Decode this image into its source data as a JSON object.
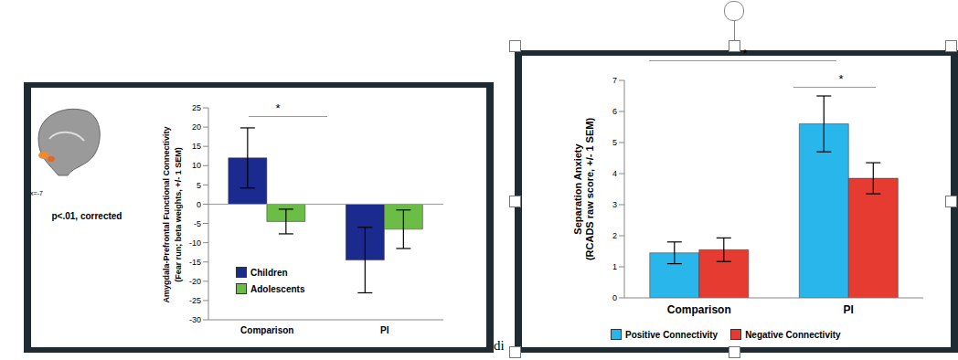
{
  "chart_data": [
    {
      "type": "bar",
      "categories": [
        "Comparison",
        "PI"
      ],
      "y_label": "Amygdala-Prefrontal Functional Connectivity\n(Fear run; beta weights, +/- 1 SEM)",
      "series": [
        {
          "name": "Children",
          "color": "#1b2a8f",
          "values": [
            12,
            -14.5
          ],
          "errors": [
            7.8,
            8.5
          ]
        },
        {
          "name": "Adolescents",
          "color": "#6cbd45",
          "values": [
            -4.5,
            -6.5
          ],
          "errors": [
            3.2,
            5
          ]
        }
      ],
      "ylim": [
        -30,
        25
      ],
      "yticks": [
        -30,
        -25,
        -20,
        -15,
        -10,
        -5,
        0,
        5,
        10,
        15,
        20,
        25
      ],
      "legend": "lower left",
      "annotations": [
        "*",
        "x=-7",
        "p<.01, corrected"
      ]
    },
    {
      "type": "bar",
      "categories": [
        "Comparison",
        "PI"
      ],
      "y_label": "Separation Anxiety\n(RCADS raw score, +/- 1 SEM)",
      "series": [
        {
          "name": "Positive Connectivity",
          "color": "#29b6ea",
          "values": [
            1.45,
            5.6
          ],
          "errors": [
            0.35,
            0.9
          ]
        },
        {
          "name": "Negative Connectivity",
          "color": "#e53b30",
          "values": [
            1.55,
            3.85
          ],
          "errors": [
            0.38,
            0.5
          ]
        }
      ],
      "ylim": [
        0,
        7
      ],
      "yticks": [
        0,
        1,
        2,
        3,
        4,
        5,
        6,
        7
      ],
      "legend": "bottom",
      "annotations": [
        "*",
        "*"
      ]
    }
  ],
  "page_text": "di"
}
